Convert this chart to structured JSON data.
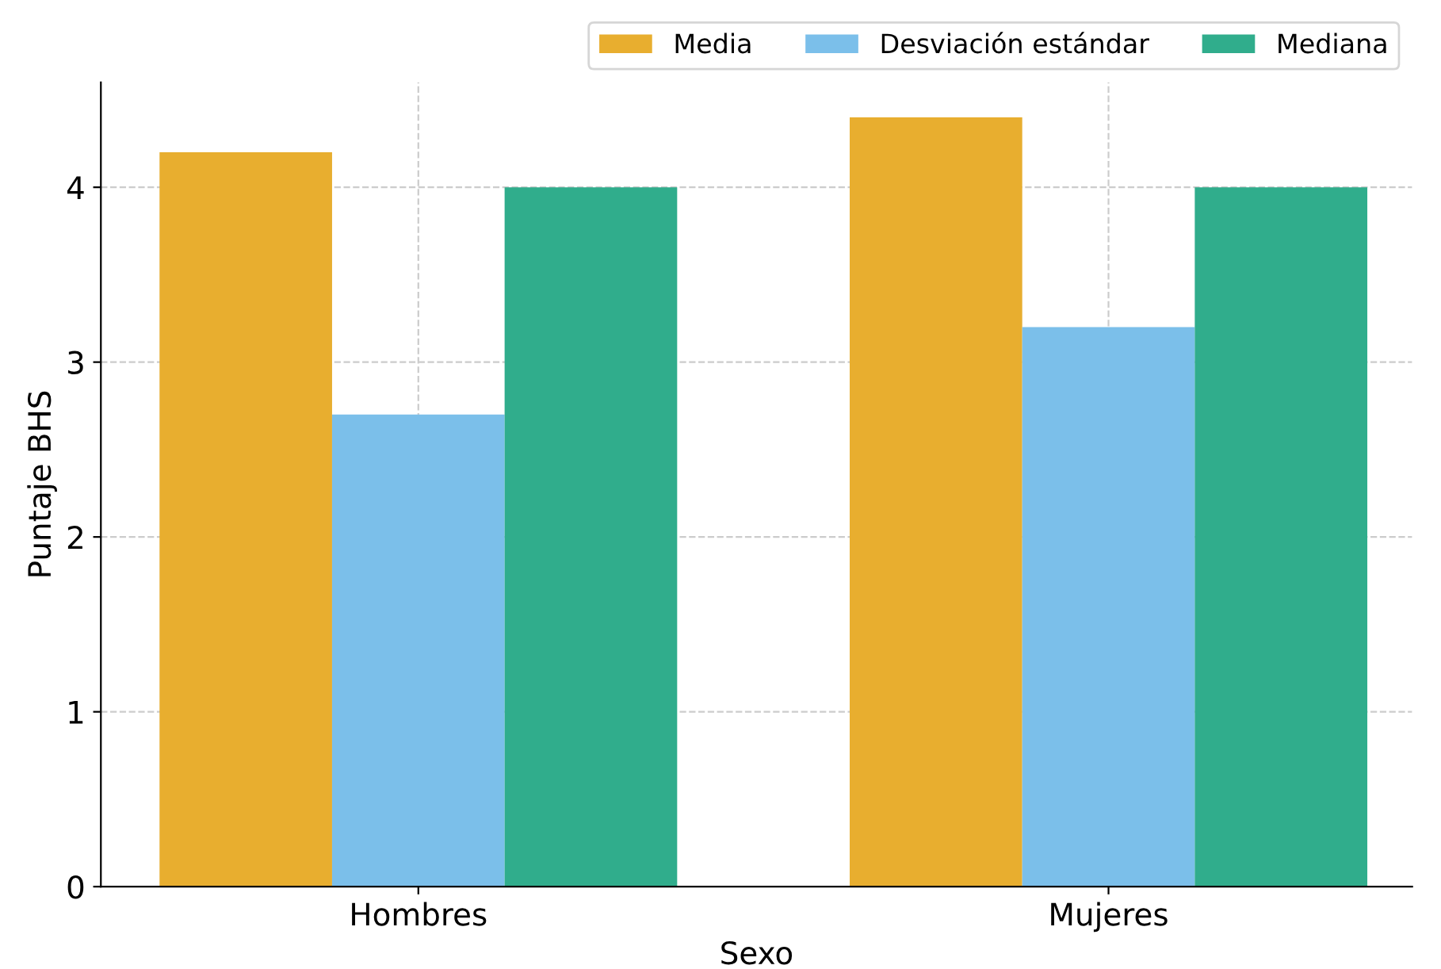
{
  "chart_data": {
    "type": "bar",
    "xlabel": "Sexo",
    "ylabel": "Puntaje BHS",
    "categories": [
      "Hombres",
      "Mujeres"
    ],
    "series": [
      {
        "name": "Media",
        "color": "#e8ae2f",
        "values": [
          4.2,
          4.4
        ]
      },
      {
        "name": "Desviación estándar",
        "color": "#7bbfea",
        "values": [
          2.7,
          3.2
        ]
      },
      {
        "name": "Mediana",
        "color": "#30ad8c",
        "values": [
          4.0,
          4.0
        ]
      }
    ],
    "ylim": [
      0,
      4.6
    ],
    "yticks": [
      0,
      1,
      2,
      3,
      4
    ],
    "grid": true,
    "legend": "top right"
  }
}
